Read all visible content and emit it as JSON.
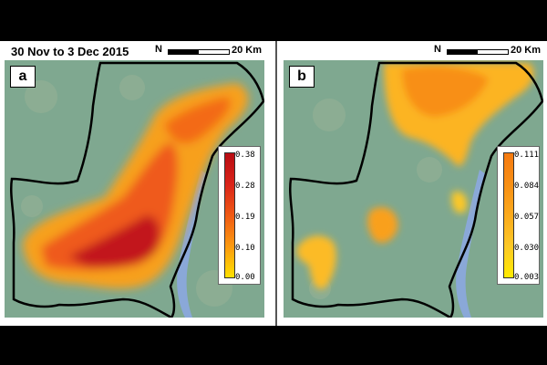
{
  "date_range": "30 Nov to 3 Dec 2015",
  "scale_label": "20 Km",
  "north_symbol": "N",
  "panels": [
    {
      "tag": "a",
      "legend_ticks": [
        "0.38",
        "0.28",
        "0.19",
        "0.10",
        "0.00"
      ],
      "legend_colors": [
        "#b80c12",
        "#d9241a",
        "#f05a14",
        "#fb9a10",
        "#ffe000"
      ]
    },
    {
      "tag": "b",
      "legend_ticks": [
        "0.111",
        "0.084",
        "0.057",
        "0.030",
        "0.003"
      ],
      "legend_colors": [
        "#f57a10",
        "#f88f14",
        "#fbaa1c",
        "#fcc826",
        "#ffeb00"
      ]
    }
  ],
  "colors": {
    "background": "#000000",
    "land": "#7fa890",
    "river": "#8aa8d8",
    "boundary": "#000000"
  }
}
